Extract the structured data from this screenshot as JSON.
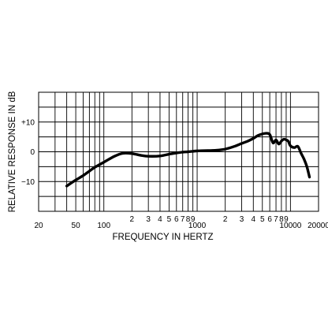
{
  "chart_data": {
    "type": "line",
    "title": "",
    "xlabel": "FREQUENCY IN HERTZ",
    "ylabel": "RELATIVE RESPONSE IN dB",
    "xscale": "log",
    "xlim": [
      20,
      20000
    ],
    "ylim": [
      -20,
      20
    ],
    "grid": true,
    "x_tick_labels": [
      {
        "value": 20,
        "label": "20"
      },
      {
        "value": 50,
        "label": "50"
      },
      {
        "value": 100,
        "label": "100"
      },
      {
        "value": 200,
        "label": "2"
      },
      {
        "value": 300,
        "label": "3"
      },
      {
        "value": 400,
        "label": "4"
      },
      {
        "value": 500,
        "label": "5"
      },
      {
        "value": 600,
        "label": "6"
      },
      {
        "value": 700,
        "label": "7"
      },
      {
        "value": 800,
        "label": "8"
      },
      {
        "value": 900,
        "label": "9"
      },
      {
        "value": 1000,
        "label": "1000"
      },
      {
        "value": 2000,
        "label": "2"
      },
      {
        "value": 3000,
        "label": "3"
      },
      {
        "value": 4000,
        "label": "4"
      },
      {
        "value": 5000,
        "label": "5"
      },
      {
        "value": 6000,
        "label": "6"
      },
      {
        "value": 7000,
        "label": "7"
      },
      {
        "value": 8000,
        "label": "8"
      },
      {
        "value": 9000,
        "label": "9"
      },
      {
        "value": 10000,
        "label": "10000"
      },
      {
        "value": 20000,
        "label": "20000"
      }
    ],
    "y_tick_labels": [
      {
        "value": 10,
        "label": "+10"
      },
      {
        "value": 0,
        "label": "0"
      },
      {
        "value": -10,
        "label": "−10"
      }
    ],
    "series": [
      {
        "x": [
          40,
          50,
          60,
          70,
          80,
          100,
          130,
          160,
          200,
          250,
          300,
          400,
          500,
          600,
          700,
          800,
          1000,
          1300,
          1600,
          2000,
          2500,
          3000,
          3500,
          4000,
          4500,
          5000,
          5500,
          6000,
          6500,
          7000,
          7500,
          8000,
          8500,
          9000,
          9500,
          10000,
          11000,
          12000,
          13000,
          14000,
          15000,
          16000
        ],
        "y": [
          -11.5,
          -9.5,
          -8.0,
          -6.5,
          -5.2,
          -3.5,
          -1.5,
          -0.5,
          -0.6,
          -1.2,
          -1.5,
          -1.4,
          -0.8,
          -0.4,
          -0.1,
          0.0,
          0.3,
          0.4,
          0.5,
          0.9,
          1.8,
          2.8,
          3.6,
          4.5,
          5.5,
          6.0,
          6.2,
          5.8,
          3.0,
          4.0,
          2.6,
          3.6,
          4.2,
          4.0,
          3.5,
          2.0,
          1.4,
          1.8,
          -0.5,
          -2.5,
          -5.0,
          -8.5
        ]
      }
    ]
  }
}
